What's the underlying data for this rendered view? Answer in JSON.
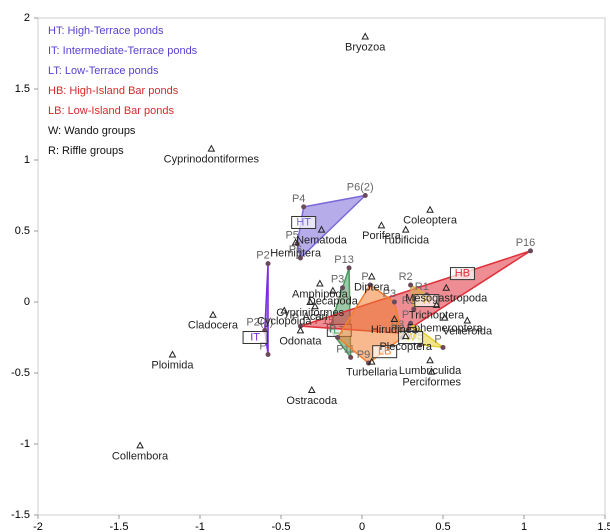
{
  "chart_data": {
    "type": "scatter",
    "xlim": [
      -2,
      1.5
    ],
    "xticks": [
      -2,
      -1.5,
      -1,
      -0.5,
      0,
      0.5,
      1,
      1.5
    ],
    "ylim": [
      -1.5,
      2
    ],
    "yticks": [
      -1.5,
      -1,
      -0.5,
      0,
      0.5,
      1,
      1.5,
      2
    ],
    "legend": [
      {
        "text": "HT: High-Terrace ponds",
        "color": "#5a3fd0"
      },
      {
        "text": "IT: Intermediate-Terrace ponds",
        "color": "#5a3fd0"
      },
      {
        "text": "LT: Low-Terrace ponds",
        "color": "#5a3fd0"
      },
      {
        "text": "HB: High-Island Bar ponds",
        "color": "#d42a2a"
      },
      {
        "text": "LB: Low-Island Bar ponds",
        "color": "#d42a2a"
      },
      {
        "text": "W: Wando groups",
        "color": "#111111"
      },
      {
        "text": "R: Riffle groups",
        "color": "#111111"
      }
    ],
    "taxa": {
      "names": [
        "Bryozoa",
        "Cyprinodontiformes",
        "Nematoda",
        "Hemiptera",
        "Porifera",
        "Amphipoda",
        "Decapoda",
        "Coleoptera",
        "Tubificida",
        "Diptera",
        "Cladocera",
        "Cypriniformes",
        "Cyclopoida",
        "Acari",
        "Ploimida",
        "Odonata",
        "Trichoptera",
        "Ephemeroptera",
        "Mesogastropoda",
        "Hirudinea",
        "Plecoptera",
        "Veneroida",
        "Lumbriculida",
        "Turbellaria",
        "Perciformes",
        "Ostracoda",
        "Collembora"
      ],
      "x": [
        0.02,
        -0.93,
        -0.25,
        -0.41,
        0.12,
        -0.26,
        -0.18,
        0.42,
        0.27,
        0.06,
        -0.92,
        -0.32,
        -0.48,
        -0.29,
        -1.17,
        -0.38,
        0.46,
        0.51,
        0.52,
        0.2,
        0.27,
        0.65,
        0.42,
        0.06,
        0.43,
        -0.31,
        -1.37
      ],
      "y": [
        1.87,
        1.08,
        0.51,
        0.42,
        0.54,
        0.13,
        0.08,
        0.65,
        0.51,
        0.18,
        -0.09,
        0.0,
        -0.06,
        -0.03,
        -0.37,
        -0.2,
        -0.02,
        -0.11,
        0.1,
        -0.12,
        -0.24,
        -0.13,
        -0.41,
        -0.42,
        -0.49,
        -0.62,
        -1.01
      ]
    },
    "groups": [
      {
        "code": "HT",
        "color": "#7b68d8",
        "label_x": -0.36,
        "label_y": 0.56,
        "sites": {
          "labels": [
            "P4",
            "P6(2)",
            "P6",
            "P5"
          ],
          "x": [
            -0.36,
            0.02,
            -0.38,
            -0.4
          ],
          "y": [
            0.67,
            0.75,
            0.31,
            0.41
          ]
        }
      },
      {
        "code": "IT",
        "color": "#7a2ae0",
        "label_x": -0.66,
        "label_y": -0.25,
        "sites": {
          "labels": [
            "P2",
            "P2(2)",
            "P"
          ],
          "x": [
            -0.58,
            -0.6,
            -0.58
          ],
          "y": [
            0.27,
            -0.2,
            -0.37
          ]
        }
      },
      {
        "code": "LT",
        "color": "#4a9a60",
        "label_x": -0.14,
        "label_y": -0.2,
        "sites": {
          "labels": [
            "P13",
            "P3",
            "P15",
            "P11"
          ],
          "x": [
            -0.08,
            -0.12,
            -0.2,
            -0.07
          ],
          "y": [
            0.24,
            0.1,
            -0.19,
            -0.39
          ]
        }
      },
      {
        "code": "HB",
        "color": "#e0303a",
        "label_x": 0.62,
        "label_y": 0.2,
        "sites": {
          "labels": [
            "P",
            "P16",
            "P8"
          ],
          "x": [
            -0.38,
            1.04,
            0.25
          ],
          "y": [
            -0.17,
            0.36,
            -0.22
          ]
        }
      },
      {
        "code": "LB",
        "color": "#f08030",
        "label_x": 0.14,
        "label_y": -0.35,
        "sites": {
          "labels": [
            "P",
            "P3",
            "P8",
            "P9",
            "P"
          ],
          "x": [
            0.05,
            0.2,
            0.25,
            0.04,
            -0.15
          ],
          "y": [
            0.12,
            0.0,
            -0.25,
            -0.43,
            -0.25
          ]
        }
      },
      {
        "code": "W",
        "color": "#e6d030",
        "label_x": 0.3,
        "label_y": -0.25,
        "sites": {
          "labels": [
            "P",
            "W5",
            "P"
          ],
          "x": [
            0.3,
            0.36,
            0.5
          ],
          "y": [
            -0.15,
            -0.3,
            -0.32
          ]
        }
      },
      {
        "code": "R",
        "color": "#d8b040",
        "label_x": 0.4,
        "label_y": 0.01,
        "sites": {
          "labels": [
            "R2",
            "R3",
            "R1"
          ],
          "x": [
            0.3,
            0.32,
            0.4
          ],
          "y": [
            0.12,
            -0.05,
            0.05
          ]
        }
      }
    ]
  }
}
